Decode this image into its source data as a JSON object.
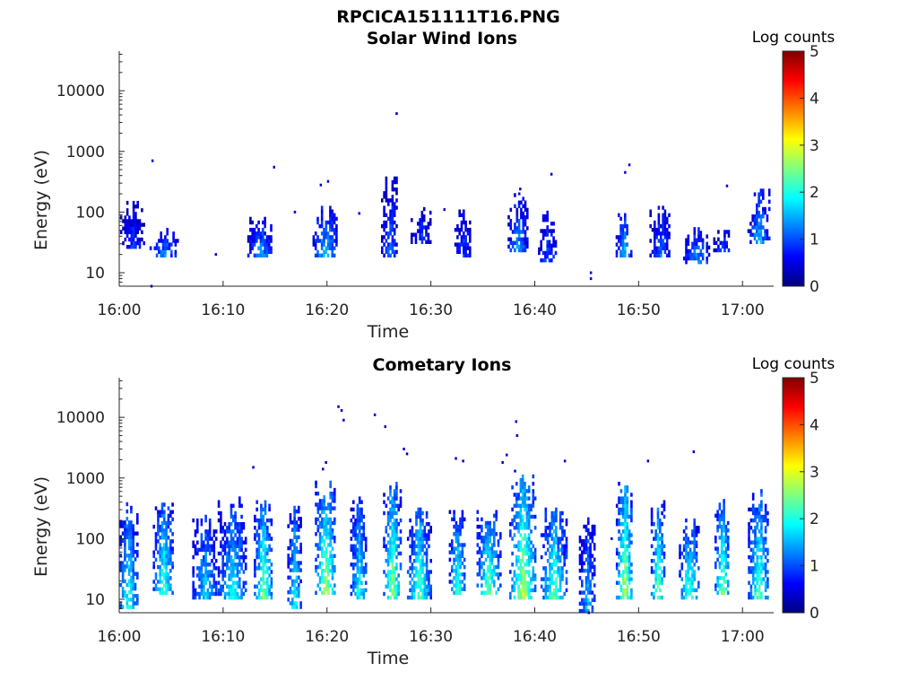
{
  "figure_title": "RPCICA151111T16.PNG",
  "colormap": [
    "#00007f",
    "#0000ff",
    "#007fff",
    "#00ffff",
    "#7fff7f",
    "#ffff00",
    "#ff7f00",
    "#ff0000",
    "#7f0000"
  ],
  "chart_data": [
    {
      "type": "heatmap",
      "title": "Solar Wind Ions",
      "xlabel": "Time",
      "ylabel": "Energy (eV)",
      "yscale": "log",
      "ylim": [
        6,
        45000
      ],
      "xlim_minutes": [
        0,
        63
      ],
      "x_ticks": [
        "16:00",
        "16:10",
        "16:20",
        "16:30",
        "16:40",
        "16:50",
        "17:00"
      ],
      "y_ticks": [
        "10",
        "100",
        "1000",
        "10000"
      ],
      "colorbar": {
        "label": "Log counts",
        "range": [
          0,
          5
        ],
        "ticks": [
          "0",
          "1",
          "2",
          "3",
          "4",
          "5"
        ]
      },
      "bursts": [
        {
          "t": 1.2,
          "elo": 25,
          "ehi": 130,
          "pk": 0.8
        },
        {
          "t": 4.3,
          "elo": 18,
          "ehi": 45,
          "pk": 1.2
        },
        {
          "t": 13.5,
          "elo": 18,
          "ehi": 90,
          "pk": 1.3
        },
        {
          "t": 19.8,
          "elo": 18,
          "ehi": 120,
          "pk": 1.5
        },
        {
          "t": 26.0,
          "elo": 18,
          "ehi": 320,
          "pk": 1.1
        },
        {
          "t": 29.0,
          "elo": 30,
          "ehi": 110,
          "pk": 0.9
        },
        {
          "t": 33.0,
          "elo": 18,
          "ehi": 100,
          "pk": 0.9
        },
        {
          "t": 38.3,
          "elo": 22,
          "ehi": 200,
          "pk": 1.3
        },
        {
          "t": 41.2,
          "elo": 15,
          "ehi": 90,
          "pk": 1.0
        },
        {
          "t": 48.5,
          "elo": 18,
          "ehi": 80,
          "pk": 1.5
        },
        {
          "t": 52.0,
          "elo": 18,
          "ehi": 120,
          "pk": 1.1
        },
        {
          "t": 55.5,
          "elo": 14,
          "ehi": 45,
          "pk": 1.3
        },
        {
          "t": 58.0,
          "elo": 22,
          "ehi": 45,
          "pk": 0.9
        },
        {
          "t": 61.5,
          "elo": 30,
          "ehi": 220,
          "pk": 1.4
        }
      ],
      "scatter": [
        {
          "t": 3.1,
          "e": 700
        },
        {
          "t": 14.8,
          "e": 550
        },
        {
          "t": 19.3,
          "e": 280
        },
        {
          "t": 20.0,
          "e": 320
        },
        {
          "t": 26.6,
          "e": 4200
        },
        {
          "t": 38.4,
          "e": 200
        },
        {
          "t": 38.5,
          "e": 240
        },
        {
          "t": 41.5,
          "e": 420
        },
        {
          "t": 48.6,
          "e": 450
        },
        {
          "t": 49.0,
          "e": 600
        },
        {
          "t": 58.4,
          "e": 270
        },
        {
          "t": 9.2,
          "e": 20
        },
        {
          "t": 16.8,
          "e": 100
        },
        {
          "t": 45.3,
          "e": 8
        },
        {
          "t": 45.3,
          "e": 10
        },
        {
          "t": 3.0,
          "e": 6
        },
        {
          "t": 23.0,
          "e": 95
        },
        {
          "t": 31.2,
          "e": 110
        }
      ]
    },
    {
      "type": "heatmap",
      "title": "Cometary Ions",
      "xlabel": "Time",
      "ylabel": "Energy (eV)",
      "yscale": "log",
      "ylim": [
        6,
        45000
      ],
      "xlim_minutes": [
        0,
        63
      ],
      "x_ticks": [
        "16:00",
        "16:10",
        "16:20",
        "16:30",
        "16:40",
        "16:50",
        "17:00"
      ],
      "y_ticks": [
        "10",
        "100",
        "1000",
        "10000"
      ],
      "colorbar": {
        "label": "Log counts",
        "range": [
          0,
          5
        ],
        "ticks": [
          "0",
          "1",
          "2",
          "3",
          "4",
          "5"
        ]
      },
      "bursts": [
        {
          "t": 0.8,
          "elo": 7,
          "ehi": 300,
          "pk": 1.9
        },
        {
          "t": 4.2,
          "elo": 12,
          "ehi": 320,
          "pk": 2.1
        },
        {
          "t": 8.2,
          "elo": 10,
          "ehi": 200,
          "pk": 1.6
        },
        {
          "t": 10.8,
          "elo": 10,
          "ehi": 400,
          "pk": 1.8
        },
        {
          "t": 13.8,
          "elo": 10,
          "ehi": 400,
          "pk": 2.4
        },
        {
          "t": 16.8,
          "elo": 7,
          "ehi": 300,
          "pk": 1.9
        },
        {
          "t": 19.8,
          "elo": 12,
          "ehi": 800,
          "pk": 2.6
        },
        {
          "t": 23.0,
          "elo": 10,
          "ehi": 400,
          "pk": 1.9
        },
        {
          "t": 26.2,
          "elo": 10,
          "ehi": 800,
          "pk": 2.5
        },
        {
          "t": 28.8,
          "elo": 10,
          "ehi": 300,
          "pk": 2.2
        },
        {
          "t": 32.5,
          "elo": 12,
          "ehi": 300,
          "pk": 2.1
        },
        {
          "t": 35.5,
          "elo": 12,
          "ehi": 300,
          "pk": 2.3
        },
        {
          "t": 38.8,
          "elo": 10,
          "ehi": 900,
          "pk": 2.6
        },
        {
          "t": 41.8,
          "elo": 10,
          "ehi": 300,
          "pk": 2.2
        },
        {
          "t": 45.0,
          "elo": 6,
          "ehi": 200,
          "pk": 1.5
        },
        {
          "t": 48.6,
          "elo": 10,
          "ehi": 700,
          "pk": 2.6
        },
        {
          "t": 51.8,
          "elo": 10,
          "ehi": 400,
          "pk": 2.4
        },
        {
          "t": 54.8,
          "elo": 10,
          "ehi": 200,
          "pk": 2.2
        },
        {
          "t": 58.0,
          "elo": 12,
          "ehi": 400,
          "pk": 2.4
        },
        {
          "t": 61.5,
          "elo": 10,
          "ehi": 500,
          "pk": 2.2
        }
      ],
      "scatter": [
        {
          "t": 21.0,
          "e": 15000
        },
        {
          "t": 21.3,
          "e": 13000
        },
        {
          "t": 21.5,
          "e": 9000
        },
        {
          "t": 24.5,
          "e": 11000
        },
        {
          "t": 25.5,
          "e": 7000
        },
        {
          "t": 27.3,
          "e": 3000
        },
        {
          "t": 27.6,
          "e": 2500
        },
        {
          "t": 32.3,
          "e": 2100
        },
        {
          "t": 33.0,
          "e": 1900
        },
        {
          "t": 36.8,
          "e": 1800
        },
        {
          "t": 37.2,
          "e": 2400
        },
        {
          "t": 38.1,
          "e": 8500
        },
        {
          "t": 38.2,
          "e": 5000
        },
        {
          "t": 38.0,
          "e": 1300
        },
        {
          "t": 42.8,
          "e": 1900
        },
        {
          "t": 50.8,
          "e": 1900
        },
        {
          "t": 55.2,
          "e": 2700
        },
        {
          "t": 19.5,
          "e": 1400
        },
        {
          "t": 19.8,
          "e": 1800
        },
        {
          "t": 12.8,
          "e": 1500
        },
        {
          "t": 47.3,
          "e": 100
        },
        {
          "t": 45.1,
          "e": 6
        }
      ]
    }
  ]
}
